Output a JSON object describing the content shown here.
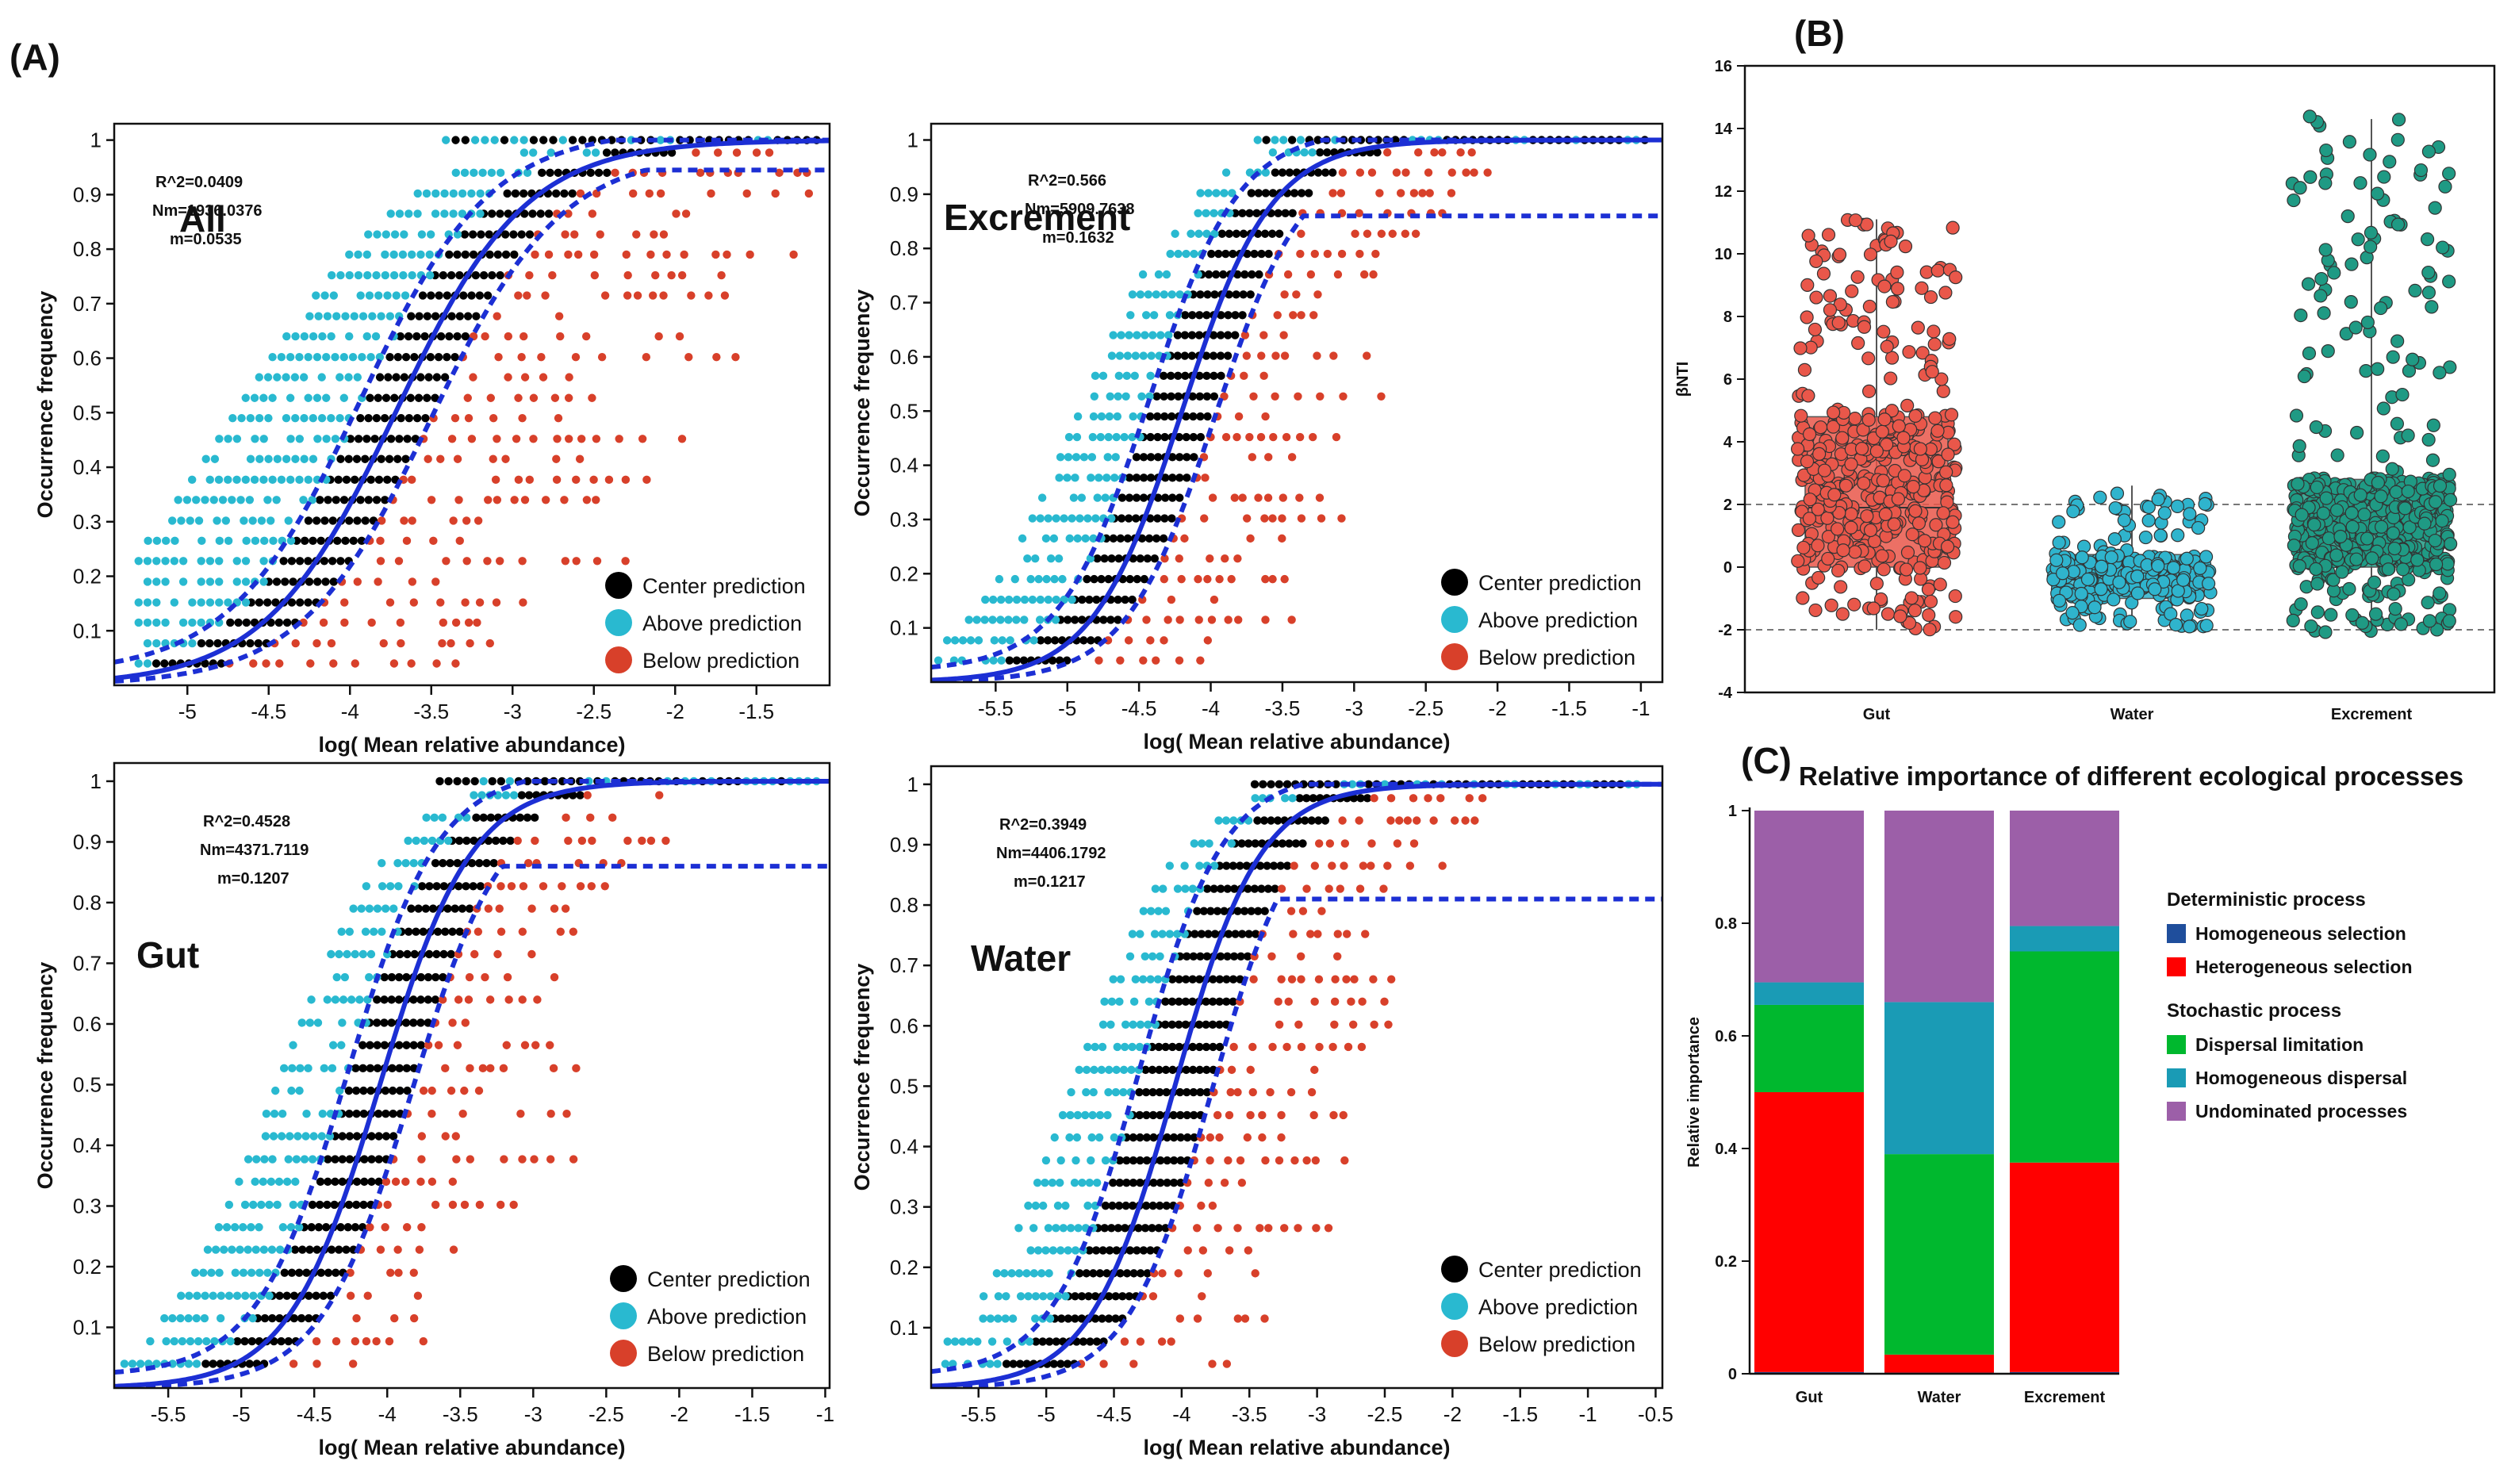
{
  "figure": {
    "panel_labels": {
      "a": "(A)",
      "b": "(B)",
      "c": "(C)"
    }
  },
  "chart_data": [
    {
      "id": "ncm_all",
      "type": "scatter",
      "subtitle": "All",
      "xlabel": "log( Mean relative abundance)",
      "ylabel": "Occurrence frequency",
      "xlim": [
        -5.45,
        -1.05
      ],
      "ylim": [
        0.0,
        1.03
      ],
      "x_ticks": [
        -5,
        -4.5,
        -4,
        -3.5,
        -3,
        -2.5,
        -2,
        -1.5
      ],
      "x_tick_labels": [
        "-5",
        "-4.5",
        "-4",
        "-3.5",
        "-3",
        "-2.5",
        "-2",
        "-1.5"
      ],
      "y_ticks": [
        0.1,
        0.2,
        0.3,
        0.4,
        0.5,
        0.6,
        0.7,
        0.8,
        0.9,
        1
      ],
      "y_tick_labels": [
        "0.1",
        "0.2",
        "0.3",
        "0.4",
        "0.5",
        "0.6",
        "0.7",
        "0.8",
        "0.9",
        "1"
      ],
      "stats": {
        "r2": "R^2=0.0409",
        "nm": "Nm=1936.0376",
        "m": "m=0.0535"
      },
      "fit": {
        "center": -3.72,
        "slope": 2.5,
        "ci_shift": 0.22,
        "lower_cap": 0.945
      },
      "scatter_range": {
        "xmin": -5.3,
        "xmax": -1.1,
        "spread_above": 0.95,
        "spread_below": 1.5
      },
      "legend": [
        "Center prediction",
        "Above prediction",
        "Below prediction"
      ]
    },
    {
      "id": "ncm_excrement",
      "type": "scatter",
      "subtitle": "Excrement",
      "xlabel": "log( Mean relative abundance)",
      "ylabel": "Occurrence frequency",
      "xlim": [
        -5.95,
        -0.85
      ],
      "ylim": [
        0.0,
        1.03
      ],
      "x_ticks": [
        -5.5,
        -5,
        -4.5,
        -4,
        -3.5,
        -3,
        -2.5,
        -2,
        -1.5,
        -1
      ],
      "x_tick_labels": [
        "-5.5",
        "-5",
        "-4.5",
        "-4",
        "-3.5",
        "-3",
        "-2.5",
        "-2",
        "-1.5",
        "-1"
      ],
      "y_ticks": [
        0.1,
        0.2,
        0.3,
        0.4,
        0.5,
        0.6,
        0.7,
        0.8,
        0.9,
        1
      ],
      "y_tick_labels": [
        "0.1",
        "0.2",
        "0.3",
        "0.4",
        "0.5",
        "0.6",
        "0.7",
        "0.8",
        "0.9",
        "1"
      ],
      "stats": {
        "r2": "R^2=0.566",
        "nm": "Nm=5909.7638",
        "m": "m=0.1632"
      },
      "fit": {
        "center": -4.2,
        "slope": 3.2,
        "ci_shift": 0.23,
        "lower_cap": 0.86
      },
      "scatter_range": {
        "xmin": -5.9,
        "xmax": -0.95,
        "spread_above": 0.6,
        "spread_below": 1.0
      },
      "legend": [
        "Center prediction",
        "Above prediction",
        "Below prediction"
      ]
    },
    {
      "id": "ncm_gut",
      "type": "scatter",
      "subtitle": "Gut",
      "xlabel": "log( Mean relative abundance)",
      "ylabel": "Occurrence frequency",
      "xlim": [
        -5.87,
        -0.97
      ],
      "ylim": [
        0.0,
        1.03
      ],
      "x_ticks": [
        -5.5,
        -5,
        -4.5,
        -4,
        -3.5,
        -3,
        -2.5,
        -2,
        -1.5,
        -1
      ],
      "x_tick_labels": [
        "-5.5",
        "-5",
        "-4.5",
        "-4",
        "-3.5",
        "-3",
        "-2.5",
        "-2",
        "-1.5",
        "-1"
      ],
      "y_ticks": [
        0.1,
        0.2,
        0.3,
        0.4,
        0.5,
        0.6,
        0.7,
        0.8,
        0.9,
        1
      ],
      "y_tick_labels": [
        "0.1",
        "0.2",
        "0.3",
        "0.4",
        "0.5",
        "0.6",
        "0.7",
        "0.8",
        "0.9",
        "1"
      ],
      "stats": {
        "r2": "R^2=0.4528",
        "nm": "Nm=4371.7119",
        "m": "m=0.1207"
      },
      "fit": {
        "center": -4.05,
        "slope": 3.2,
        "ci_shift": 0.22,
        "lower_cap": 0.86
      },
      "scatter_range": {
        "xmin": -5.8,
        "xmax": -1.0,
        "spread_above": 0.6,
        "spread_below": 1.1
      },
      "legend": [
        "Center prediction",
        "Above prediction",
        "Below prediction"
      ]
    },
    {
      "id": "ncm_water",
      "type": "scatter",
      "subtitle": "Water",
      "xlabel": "log( Mean relative abundance)",
      "ylabel": "Occurrence frequency",
      "xlim": [
        -5.85,
        -0.45
      ],
      "ylim": [
        0.0,
        1.03
      ],
      "x_ticks": [
        -5.5,
        -5,
        -4.5,
        -4,
        -3.5,
        -3,
        -2.5,
        -2,
        -1.5,
        -1,
        -0.5
      ],
      "x_tick_labels": [
        "-5.5",
        "-5",
        "-4.5",
        "-4",
        "-3.5",
        "-3",
        "-2.5",
        "-2",
        "-1.5",
        "-1",
        "-0.5"
      ],
      "y_ticks": [
        0.1,
        0.2,
        0.3,
        0.4,
        0.5,
        0.6,
        0.7,
        0.8,
        0.9,
        1
      ],
      "y_tick_labels": [
        "0.1",
        "0.2",
        "0.3",
        "0.4",
        "0.5",
        "0.6",
        "0.7",
        "0.8",
        "0.9",
        "1"
      ],
      "stats": {
        "r2": "R^2=0.3949",
        "nm": "Nm=4406.1792",
        "m": "m=0.1217"
      },
      "fit": {
        "center": -4.05,
        "slope": 3.2,
        "ci_shift": 0.27,
        "lower_cap": 0.81
      },
      "scatter_range": {
        "xmin": -5.8,
        "xmax": -0.6,
        "spread_above": 0.6,
        "spread_below": 1.0
      },
      "legend": [
        "Center prediction",
        "Above prediction",
        "Below prediction"
      ]
    },
    {
      "id": "bnti_boxplot",
      "type": "box",
      "ylabel": "βNTI",
      "ylim": [
        -4,
        16
      ],
      "y_ticks": [
        -4,
        -2,
        0,
        2,
        4,
        6,
        8,
        10,
        12,
        14,
        16
      ],
      "y_tick_labels": [
        "-4",
        "-2",
        "0",
        "2",
        "4",
        "6",
        "8",
        "10",
        "12",
        "14",
        "16"
      ],
      "threshold_lines": [
        2,
        -2
      ],
      "categories": [
        "Gut",
        "Water",
        "Excrement"
      ],
      "colors": [
        "#e9574a",
        "#2fb4cd",
        "#1f9a84"
      ],
      "groups": [
        {
          "name": "Gut",
          "whisker_low": -2.0,
          "q1": 0.0,
          "median": 1.9,
          "q3": 4.8,
          "whisker_high": 11.1,
          "points_max": 11.1,
          "n": 440
        },
        {
          "name": "Water",
          "whisker_low": -1.9,
          "q1": -1.0,
          "median": -0.4,
          "q3": 0.4,
          "whisker_high": 2.6,
          "points_max": 2.6,
          "n": 260
        },
        {
          "name": "Excrement",
          "whisker_low": -2.1,
          "q1": 0.0,
          "median": 1.3,
          "q3": 2.8,
          "whisker_high": 14.3,
          "points_max": 14.4,
          "n": 560
        }
      ]
    },
    {
      "id": "relative_importance",
      "type": "bar",
      "stacked": true,
      "title": "Relative importance of different ecological processes",
      "ylabel": "Relative importance",
      "ylim": [
        0,
        1
      ],
      "y_ticks": [
        0,
        0.2,
        0.4,
        0.6,
        0.8,
        1
      ],
      "y_tick_labels": [
        "0",
        "0.2",
        "0.4",
        "0.6",
        "0.8",
        "1"
      ],
      "categories": [
        "Gut",
        "Water",
        "Excrement"
      ],
      "series": [
        {
          "name": "Homogeneous selection",
          "color": "#1f4e9c",
          "values": [
            0.003,
            0.002,
            0.003
          ]
        },
        {
          "name": "Heterogeneous selection",
          "color": "#ff0000",
          "values": [
            0.497,
            0.032,
            0.372
          ]
        },
        {
          "name": "Dispersal limitation",
          "color": "#00b82e",
          "values": [
            0.155,
            0.356,
            0.375
          ]
        },
        {
          "name": "Homogeneous dispersal",
          "color": "#1a9bb5",
          "values": [
            0.04,
            0.27,
            0.045
          ]
        },
        {
          "name": "Undominated processes",
          "color": "#9c5fa8",
          "values": [
            0.305,
            0.34,
            0.205
          ]
        }
      ],
      "legend_groups": [
        {
          "heading": "Deterministic process",
          "items": [
            "Homogeneous selection",
            "Heterogeneous selection"
          ]
        },
        {
          "heading": "Stochastic process",
          "items": [
            "Dispersal limitation",
            "Homogeneous dispersal",
            "Undominated processes"
          ]
        }
      ]
    }
  ],
  "colors": {
    "center": "#000000",
    "above": "#29b9d0",
    "below": "#d8402a",
    "fit_line": "#1c2fd4",
    "axis": "#111111"
  }
}
